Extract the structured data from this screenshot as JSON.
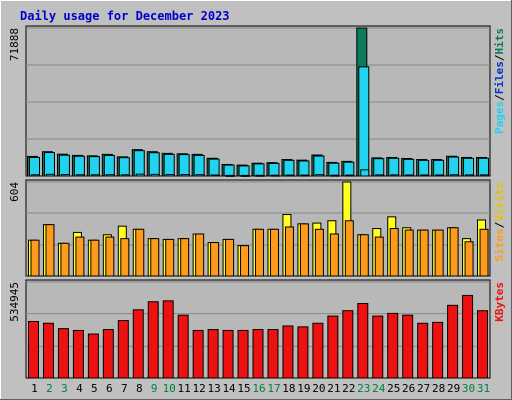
{
  "title": "Daily usage for December 2023",
  "colors": {
    "background": "#c0c0c0",
    "plot_background": "#b8b8b8",
    "grid": "#888888",
    "title_text": "#0000cc",
    "weekday_label": "#000000",
    "weekend_label": "#008040",
    "hits": "#0d7a5a",
    "files": "#22d3f0",
    "pages": "#22d3f0",
    "visits": "#ffff22",
    "sites": "#ff9a1a",
    "kbytes": "#ee1111"
  },
  "chart_data": [
    {
      "type": "bar",
      "panel": "hits_files",
      "title": "Daily usage for December 2023",
      "ylabel_parts": [
        "Pages",
        "/",
        "Files",
        "/",
        "Hits"
      ],
      "ymax_label": "71888",
      "ylim": [
        0,
        71888
      ],
      "grid": true,
      "categories": [
        "1",
        "2",
        "3",
        "4",
        "5",
        "6",
        "7",
        "8",
        "9",
        "10",
        "11",
        "12",
        "13",
        "14",
        "15",
        "16",
        "17",
        "18",
        "19",
        "20",
        "21",
        "22",
        "23",
        "24",
        "25",
        "26",
        "27",
        "28",
        "29",
        "30",
        "31"
      ],
      "weekend_days": [
        "2",
        "3",
        "9",
        "10",
        "16",
        "17",
        "23",
        "24",
        "30",
        "31"
      ],
      "series": [
        {
          "name": "Hits",
          "values": [
            9500,
            11800,
            10600,
            10000,
            9800,
            10500,
            9300,
            12800,
            11800,
            11000,
            10800,
            10500,
            8600,
            5600,
            5300,
            6200,
            6500,
            8000,
            7700,
            10200,
            6600,
            7100,
            71888,
            8800,
            9000,
            8500,
            8000,
            8000,
            9600,
            9000,
            9000
          ]
        },
        {
          "name": "Files",
          "values": [
            9000,
            11400,
            10100,
            9600,
            9400,
            10000,
            8900,
            12300,
            11300,
            10500,
            10400,
            10000,
            8200,
            5300,
            4900,
            5900,
            6100,
            7600,
            7300,
            9700,
            6200,
            6700,
            53000,
            8400,
            8600,
            8100,
            7600,
            7600,
            9200,
            8600,
            8600
          ]
        },
        {
          "name": "Pages",
          "values": [
            600,
            800,
            700,
            600,
            600,
            650,
            600,
            900,
            800,
            700,
            700,
            650,
            500,
            300,
            300,
            350,
            400,
            450,
            450,
            650,
            400,
            450,
            3000,
            550,
            550,
            500,
            500,
            500,
            600,
            550,
            550
          ]
        }
      ]
    },
    {
      "type": "bar",
      "panel": "visits_sites",
      "ylabel_parts": [
        "Sites",
        "/",
        "Visits"
      ],
      "ymax_label": "604",
      "ylim": [
        0,
        604
      ],
      "grid": true,
      "series": [
        {
          "name": "Visits",
          "values": [
            230,
            330,
            210,
            280,
            230,
            265,
            320,
            300,
            240,
            235,
            240,
            270,
            215,
            235,
            195,
            300,
            300,
            395,
            335,
            340,
            355,
            604,
            265,
            305,
            380,
            310,
            295,
            295,
            310,
            240,
            360
          ]
        },
        {
          "name": "Sites",
          "values": [
            230,
            330,
            210,
            250,
            230,
            250,
            240,
            300,
            240,
            235,
            240,
            270,
            215,
            235,
            195,
            300,
            300,
            315,
            335,
            300,
            270,
            355,
            265,
            250,
            305,
            295,
            295,
            295,
            310,
            220,
            300
          ]
        }
      ]
    },
    {
      "type": "bar",
      "panel": "kbytes",
      "ylabel_parts": [
        "KBytes"
      ],
      "ymax_label": "534945",
      "ylim": [
        0,
        534945
      ],
      "grid": true,
      "series": [
        {
          "name": "KBytes",
          "values": [
            315000,
            305000,
            275000,
            265000,
            245000,
            270000,
            320000,
            380000,
            425000,
            430000,
            350000,
            265000,
            270000,
            265000,
            265000,
            270000,
            270000,
            290000,
            285000,
            305000,
            345000,
            375000,
            415000,
            345000,
            360000,
            350000,
            305000,
            310000,
            405000,
            460000,
            375000
          ]
        }
      ]
    }
  ]
}
